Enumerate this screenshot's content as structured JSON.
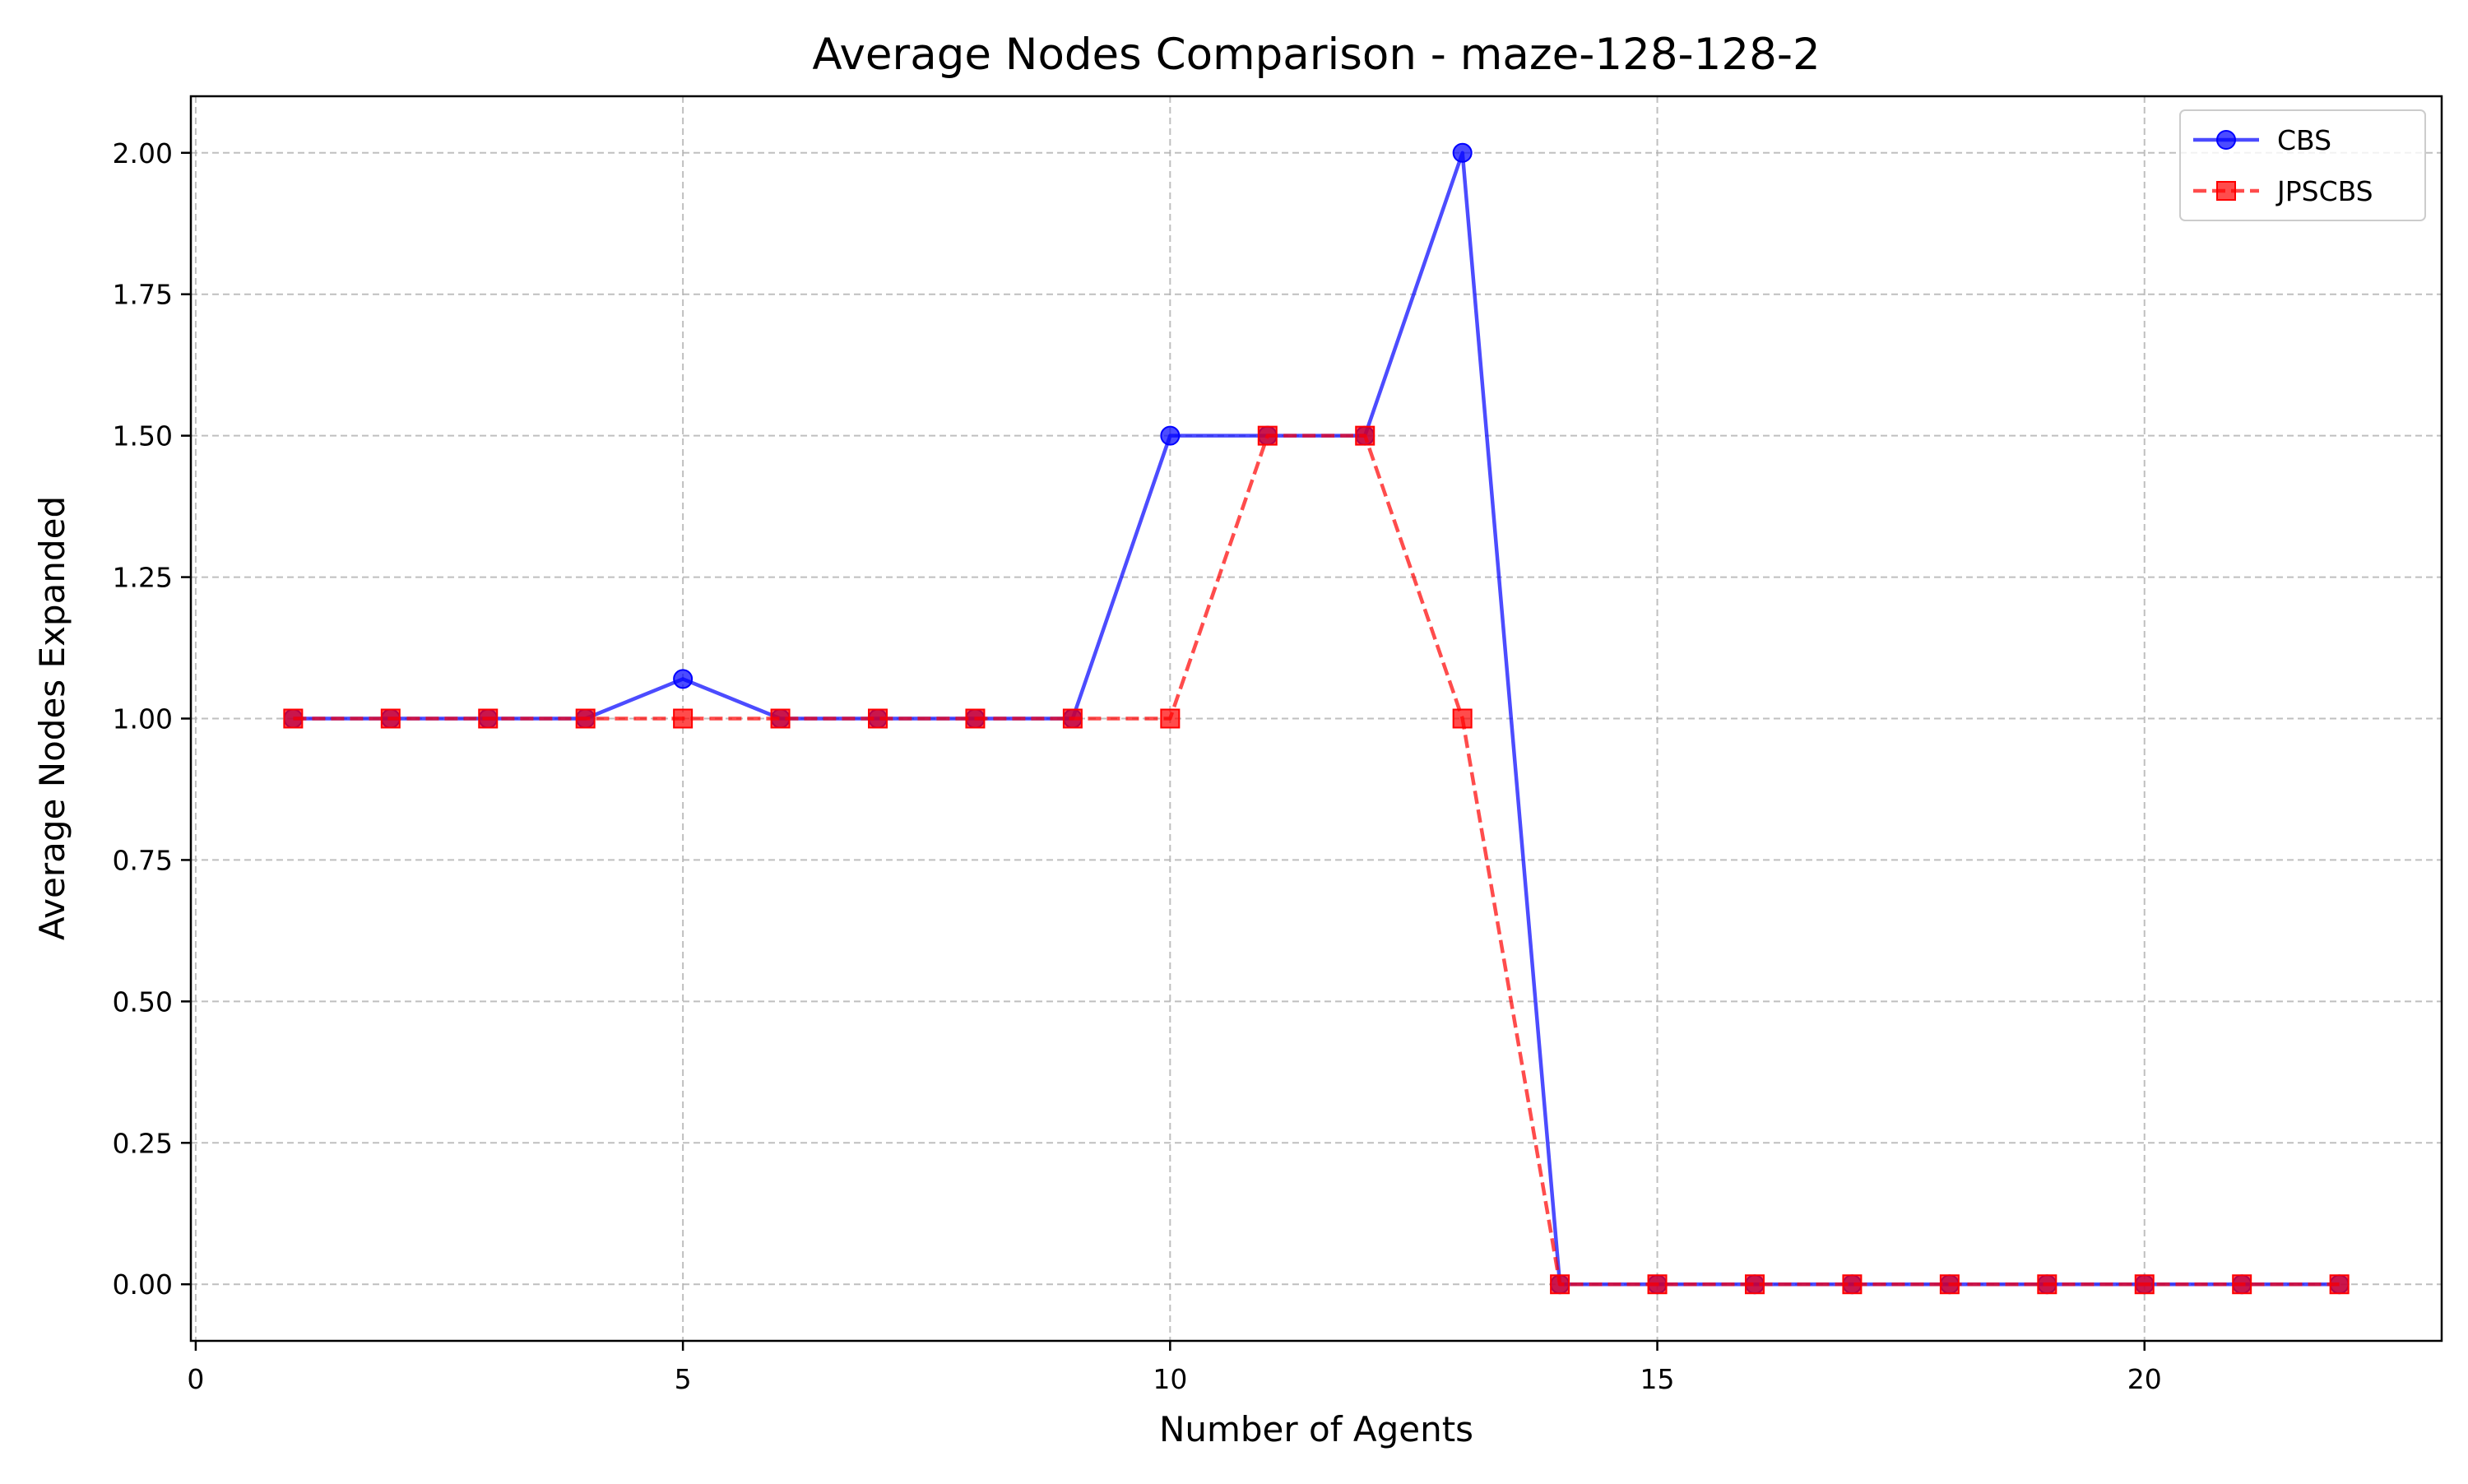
{
  "chart_data": {
    "type": "line",
    "title": "Average Nodes Comparison - maze-128-128-2",
    "xlabel": "Number of Agents",
    "ylabel": "Average Nodes Expanded",
    "xlim": [
      -0.05,
      23.05
    ],
    "ylim": [
      -0.1,
      2.1
    ],
    "xticks": [
      0,
      5,
      10,
      15,
      20
    ],
    "xtick_labels": [
      "0",
      "5",
      "10",
      "15",
      "20"
    ],
    "yticks": [
      0,
      0.25,
      0.5,
      0.75,
      1.0,
      1.25,
      1.5,
      1.75,
      2.0
    ],
    "ytick_labels": [
      "0.00",
      "0.25",
      "0.50",
      "0.75",
      "1.00",
      "1.25",
      "1.50",
      "1.75",
      "2.00"
    ],
    "grid": true,
    "legend_position": "top-right",
    "x": [
      1,
      2,
      3,
      4,
      5,
      6,
      7,
      8,
      9,
      10,
      11,
      12,
      13,
      14,
      15,
      16,
      17,
      18,
      19,
      20,
      21,
      22
    ],
    "series": [
      {
        "name": "CBS",
        "color": "#0000ff",
        "marker": "circle",
        "line_style": "solid",
        "values": [
          1.0,
          1.0,
          1.0,
          1.0,
          1.07,
          1.0,
          1.0,
          1.0,
          1.0,
          1.5,
          1.5,
          1.5,
          2.0,
          0,
          0,
          0,
          0,
          0,
          0,
          0,
          0,
          0
        ]
      },
      {
        "name": "JPSCBS",
        "color": "#ff0000",
        "marker": "square",
        "line_style": "dashed",
        "values": [
          1.0,
          1.0,
          1.0,
          1.0,
          1.0,
          1.0,
          1.0,
          1.0,
          1.0,
          1.0,
          1.5,
          1.5,
          1.0,
          0,
          0,
          0,
          0,
          0,
          0,
          0,
          0,
          0
        ]
      }
    ]
  }
}
